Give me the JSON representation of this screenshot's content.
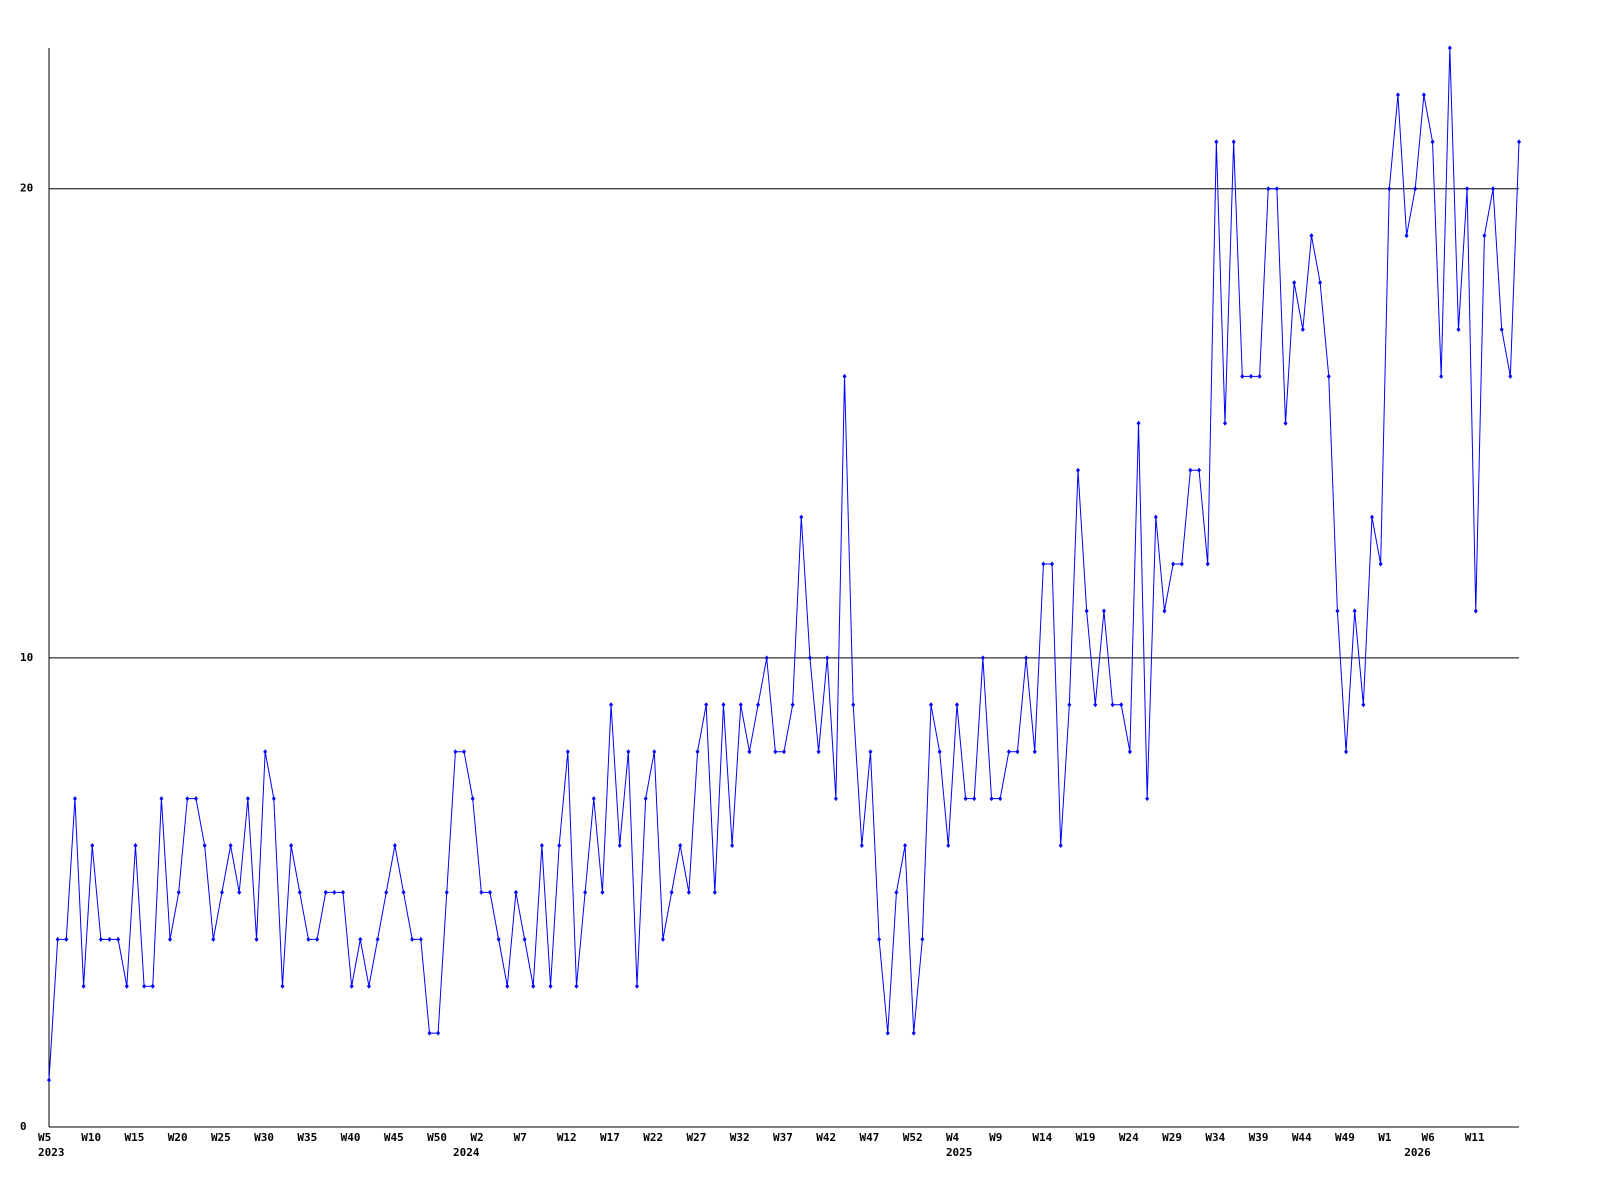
{
  "chart_data": {
    "type": "line",
    "categories": [
      "W5",
      null,
      null,
      null,
      null,
      "W10",
      null,
      null,
      null,
      null,
      "W15",
      null,
      null,
      null,
      null,
      "W20",
      null,
      null,
      null,
      null,
      "W25",
      null,
      null,
      null,
      null,
      "W30",
      null,
      null,
      null,
      null,
      "W35",
      null,
      null,
      null,
      null,
      "W40",
      null,
      null,
      null,
      null,
      "W45",
      null,
      null,
      null,
      null,
      "W50",
      null,
      null,
      null,
      null,
      "W2",
      null,
      null,
      null,
      null,
      "W7",
      null,
      null,
      null,
      null,
      "W12",
      null,
      null,
      null,
      null,
      "W17",
      null,
      null,
      null,
      null,
      "W22",
      null,
      null,
      null,
      null,
      "W27",
      null,
      null,
      null,
      null,
      "W32",
      null,
      null,
      null,
      null,
      "W37",
      null,
      null,
      null,
      null,
      "W42",
      null,
      null,
      null,
      null,
      "W47",
      null,
      null,
      null,
      null,
      "W52",
      null,
      null,
      null,
      null,
      "W4",
      null,
      null,
      null,
      null,
      "W9",
      null,
      null,
      null,
      null,
      "W14",
      null,
      null,
      null,
      null,
      "W19",
      null,
      null,
      null,
      null,
      "W24",
      null,
      null,
      null,
      null,
      "W29",
      null,
      null,
      null,
      null,
      "W34",
      null,
      null,
      null,
      null,
      "W39",
      null,
      null,
      null,
      null,
      "W44",
      null,
      null,
      null,
      null,
      "W49",
      null,
      null,
      null,
      null,
      "W1",
      null,
      null,
      null,
      null,
      "W6",
      null,
      null,
      null,
      null,
      "W11",
      null,
      null,
      null,
      null,
      null
    ],
    "years": [
      "2023",
      null,
      null,
      null,
      null,
      null,
      null,
      null,
      null,
      null,
      null,
      null,
      null,
      null,
      null,
      null,
      null,
      null,
      null,
      null,
      null,
      null,
      null,
      null,
      null,
      null,
      null,
      null,
      null,
      null,
      null,
      null,
      null,
      null,
      null,
      null,
      null,
      null,
      null,
      null,
      null,
      null,
      null,
      null,
      null,
      null,
      null,
      null,
      "2024",
      null,
      null,
      null,
      null,
      null,
      null,
      null,
      null,
      null,
      null,
      null,
      null,
      null,
      null,
      null,
      null,
      null,
      null,
      null,
      null,
      null,
      null,
      null,
      null,
      null,
      null,
      null,
      null,
      null,
      null,
      null,
      null,
      null,
      null,
      null,
      null,
      null,
      null,
      null,
      null,
      null,
      null,
      null,
      null,
      null,
      null,
      null,
      null,
      null,
      null,
      null,
      null,
      null,
      null,
      null,
      null,
      "2025",
      null,
      null,
      null,
      null,
      null,
      null,
      null,
      null,
      null,
      null,
      null,
      null,
      null,
      null,
      null,
      null,
      null,
      null,
      null,
      null,
      null,
      null,
      null,
      null,
      null,
      null,
      null,
      null,
      null,
      null,
      null,
      null,
      null,
      null,
      null,
      null,
      null,
      null,
      null,
      null,
      null,
      null,
      null,
      null,
      null,
      null,
      null,
      null,
      null,
      null,
      null,
      null,
      "2026",
      null,
      null,
      null,
      null,
      null,
      null,
      null,
      null,
      null,
      null,
      null,
      null,
      null,
      null,
      null,
      null
    ],
    "values": [
      1,
      4,
      4,
      7,
      3,
      6,
      4,
      4,
      4,
      3,
      6,
      3,
      3,
      7,
      4,
      5,
      7,
      7,
      6,
      4,
      5,
      6,
      5,
      7,
      4,
      8,
      7,
      3,
      6,
      5,
      4,
      4,
      5,
      5,
      5,
      3,
      4,
      3,
      4,
      5,
      6,
      5,
      4,
      4,
      2,
      2,
      5,
      8,
      8,
      7,
      5,
      5,
      4,
      3,
      5,
      4,
      3,
      6,
      3,
      6,
      8,
      3,
      5,
      7,
      5,
      9,
      6,
      8,
      3,
      7,
      8,
      4,
      5,
      6,
      5,
      8,
      9,
      5,
      9,
      6,
      9,
      8,
      9,
      10,
      8,
      8,
      9,
      13,
      10,
      8,
      10,
      7,
      16,
      9,
      6,
      8,
      4,
      2,
      5,
      6,
      2,
      4,
      9,
      8,
      6,
      9,
      7,
      7,
      10,
      7,
      7,
      8,
      8,
      10,
      8,
      12,
      12,
      6,
      9,
      14,
      11,
      9,
      11,
      9,
      9,
      8,
      15,
      7,
      13,
      11,
      12,
      12,
      14,
      14,
      12,
      21,
      15,
      21,
      16,
      16,
      16,
      20,
      20,
      15,
      18,
      17,
      19,
      18,
      16,
      11,
      8,
      11,
      9,
      13,
      12,
      20,
      22,
      19,
      20,
      22,
      21,
      16,
      23,
      17,
      20,
      11,
      19,
      20,
      17,
      16,
      21
    ],
    "color": "#0000ff",
    "ylim": [
      0,
      23
    ],
    "yticks": [
      0,
      10,
      20
    ],
    "grid": true
  }
}
